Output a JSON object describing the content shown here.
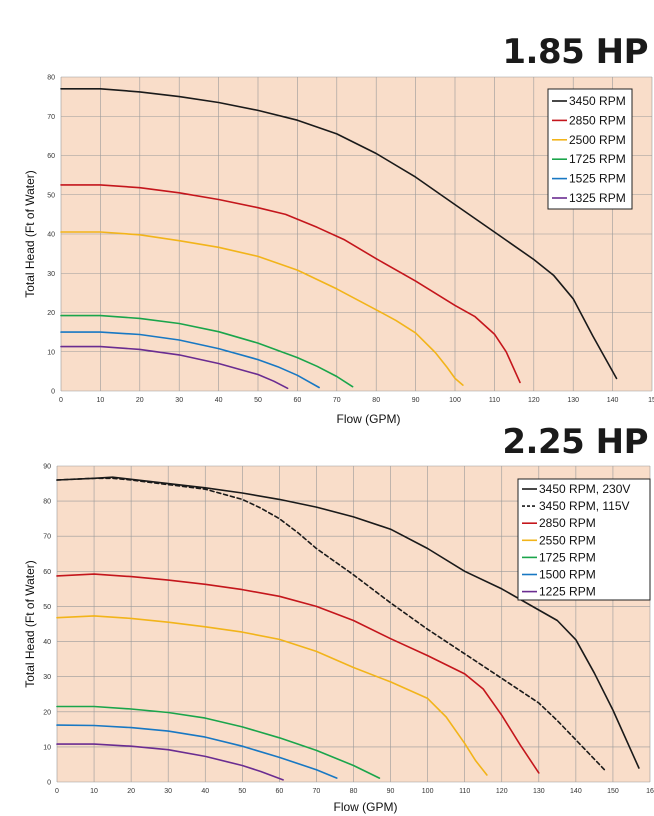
{
  "chart_data": [
    {
      "type": "line",
      "title": "1.85 HP",
      "xlabel": "Flow (GPM)",
      "ylabel": "Total Head (Ft of Water)",
      "xlim": [
        0,
        150
      ],
      "ylim": [
        0,
        80
      ],
      "xticks": [
        "0",
        "10",
        "20",
        "30",
        "40",
        "50",
        "60",
        "70",
        "80",
        "90",
        "100",
        "110",
        "120",
        "130",
        "140",
        "15"
      ],
      "yticks": [
        "0",
        "10",
        "20",
        "30",
        "40",
        "50",
        "60",
        "70",
        "80"
      ],
      "background": "#f9ddc9",
      "grid": true,
      "legend_position": "top-right",
      "series": [
        {
          "name": "3450 RPM",
          "color": "#1a1a1a",
          "dash": false,
          "x": [
            0,
            10,
            20,
            30,
            40,
            50,
            60,
            70,
            80,
            90,
            100,
            110,
            120,
            125,
            130,
            135,
            141
          ],
          "y": [
            77,
            77,
            76.2,
            75,
            73.5,
            71.5,
            69,
            65.5,
            60.5,
            54.5,
            47.5,
            40.5,
            33.5,
            29.5,
            23.5,
            14,
            3.2
          ]
        },
        {
          "name": "2850 RPM",
          "color": "#c4161c",
          "dash": false,
          "x": [
            0,
            10,
            20,
            30,
            40,
            50,
            57,
            65,
            72,
            80,
            90,
            100,
            105,
            110,
            113,
            116.5
          ],
          "y": [
            52.5,
            52.5,
            51.8,
            50.5,
            48.8,
            46.7,
            45,
            41.7,
            38.5,
            33.7,
            28,
            21.8,
            19,
            14.5,
            10,
            2.2
          ]
        },
        {
          "name": "2500 RPM",
          "color": "#f2b41a",
          "dash": false,
          "x": [
            0,
            10,
            20,
            30,
            40,
            50,
            60,
            70,
            80,
            85,
            90,
            95,
            98,
            100,
            102
          ],
          "y": [
            40.5,
            40.5,
            39.8,
            38.3,
            36.6,
            34.3,
            30.8,
            26,
            20.7,
            18,
            14.8,
            9.8,
            6,
            3.2,
            1.5
          ]
        },
        {
          "name": "1725 RPM",
          "color": "#1aa54b",
          "dash": false,
          "x": [
            0,
            10,
            20,
            30,
            40,
            50,
            60,
            65,
            70,
            74
          ],
          "y": [
            19.2,
            19.2,
            18.5,
            17.2,
            15.1,
            12.2,
            8.5,
            6.3,
            3.7,
            1.1
          ]
        },
        {
          "name": "1525 RPM",
          "color": "#1878c3",
          "dash": false,
          "x": [
            0,
            10,
            20,
            30,
            40,
            50,
            55,
            60,
            65.5
          ],
          "y": [
            15,
            15,
            14.4,
            13,
            10.8,
            8,
            6.2,
            4,
            0.9
          ]
        },
        {
          "name": "1325 RPM",
          "color": "#6a2c91",
          "dash": false,
          "x": [
            0,
            10,
            20,
            30,
            40,
            50,
            54,
            57.5
          ],
          "y": [
            11.3,
            11.3,
            10.6,
            9.2,
            7,
            4.2,
            2.5,
            0.7
          ]
        }
      ]
    },
    {
      "type": "line",
      "title": "2.25 HP",
      "xlabel": "Flow (GPM)",
      "ylabel": "Total Head (Ft of Water)",
      "xlim": [
        0,
        160
      ],
      "ylim": [
        0,
        90
      ],
      "xticks": [
        "0",
        "10",
        "20",
        "30",
        "40",
        "50",
        "60",
        "70",
        "80",
        "90",
        "100",
        "110",
        "120",
        "130",
        "140",
        "150",
        "16"
      ],
      "yticks": [
        "0",
        "10",
        "20",
        "30",
        "40",
        "50",
        "60",
        "70",
        "80",
        "90"
      ],
      "background": "#f9ddc9",
      "grid": true,
      "legend_position": "top-right",
      "series": [
        {
          "name": "3450 RPM, 230V",
          "color": "#1a1a1a",
          "dash": false,
          "x": [
            0,
            10,
            15,
            20,
            30,
            40,
            50,
            60,
            70,
            80,
            90,
            100,
            110,
            120,
            130,
            135,
            140,
            145,
            150,
            157
          ],
          "y": [
            86,
            86.5,
            86.8,
            86.2,
            85,
            83.8,
            82.3,
            80.5,
            78.3,
            75.5,
            72,
            66.5,
            60,
            55,
            49,
            46,
            40.5,
            31,
            20.5,
            4
          ]
        },
        {
          "name": "3450 RPM, 115V",
          "color": "#1a1a1a",
          "dash": true,
          "x": [
            0,
            10,
            15,
            20,
            30,
            40,
            50,
            55,
            60,
            65,
            70,
            80,
            90,
            100,
            110,
            120,
            130,
            135,
            140,
            145,
            148
          ],
          "y": [
            86,
            86.5,
            86.5,
            86,
            84.7,
            83.4,
            80.5,
            78,
            75,
            71,
            66.5,
            59,
            51,
            43.5,
            36.5,
            29.5,
            22.5,
            17.5,
            12,
            6.5,
            3.2
          ]
        },
        {
          "name": "2850 RPM",
          "color": "#c4161c",
          "dash": false,
          "x": [
            0,
            10,
            20,
            30,
            40,
            50,
            60,
            70,
            80,
            90,
            100,
            110,
            115,
            120,
            125,
            130
          ],
          "y": [
            58.7,
            59.2,
            58.5,
            57.5,
            56.3,
            54.8,
            52.9,
            50,
            46,
            40.8,
            36,
            30.8,
            26.5,
            19,
            10.5,
            2.6
          ]
        },
        {
          "name": "2550 RPM",
          "color": "#f2b41a",
          "dash": false,
          "x": [
            0,
            10,
            20,
            30,
            40,
            50,
            60,
            70,
            80,
            90,
            100,
            105,
            110,
            113,
            116
          ],
          "y": [
            46.8,
            47.3,
            46.6,
            45.5,
            44.2,
            42.7,
            40.6,
            37.2,
            32.6,
            28.5,
            23.8,
            18.5,
            11,
            6,
            2
          ]
        },
        {
          "name": "1725 RPM",
          "color": "#1aa54b",
          "dash": false,
          "x": [
            0,
            10,
            20,
            30,
            40,
            50,
            60,
            70,
            80,
            87
          ],
          "y": [
            21.5,
            21.5,
            20.8,
            19.8,
            18.2,
            15.7,
            12.6,
            9,
            4.7,
            1.1
          ]
        },
        {
          "name": "1500 RPM",
          "color": "#1878c3",
          "dash": false,
          "x": [
            0,
            10,
            20,
            30,
            40,
            50,
            60,
            70,
            75.5
          ],
          "y": [
            16.2,
            16.1,
            15.5,
            14.5,
            12.8,
            10.2,
            7,
            3.5,
            1.1
          ]
        },
        {
          "name": "1225 RPM",
          "color": "#6a2c91",
          "dash": false,
          "x": [
            0,
            10,
            20,
            30,
            40,
            50,
            55,
            61
          ],
          "y": [
            10.8,
            10.8,
            10.2,
            9.2,
            7.3,
            4.7,
            3,
            0.6
          ]
        }
      ]
    }
  ]
}
